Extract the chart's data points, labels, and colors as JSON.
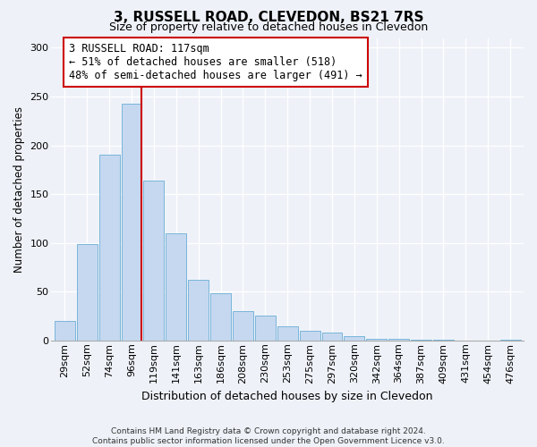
{
  "title": "3, RUSSELL ROAD, CLEVEDON, BS21 7RS",
  "subtitle": "Size of property relative to detached houses in Clevedon",
  "xlabel": "Distribution of detached houses by size in Clevedon",
  "ylabel": "Number of detached properties",
  "bin_labels": [
    "29sqm",
    "52sqm",
    "74sqm",
    "96sqm",
    "119sqm",
    "141sqm",
    "163sqm",
    "186sqm",
    "208sqm",
    "230sqm",
    "253sqm",
    "275sqm",
    "297sqm",
    "320sqm",
    "342sqm",
    "364sqm",
    "387sqm",
    "409sqm",
    "431sqm",
    "454sqm",
    "476sqm"
  ],
  "bar_values": [
    20,
    99,
    190,
    243,
    164,
    110,
    62,
    48,
    30,
    25,
    14,
    10,
    8,
    4,
    2,
    2,
    1,
    1,
    0,
    0,
    1
  ],
  "bar_color": "#c5d8f0",
  "bar_edge_color": "#6aaed6",
  "marker_bin_index": 3,
  "marker_line_color": "#cc0000",
  "annotation_title": "3 RUSSELL ROAD: 117sqm",
  "annotation_line1": "← 51% of detached houses are smaller (518)",
  "annotation_line2": "48% of semi-detached houses are larger (491) →",
  "annotation_box_facecolor": "#ffffff",
  "annotation_box_edgecolor": "#cc0000",
  "ylim": [
    0,
    310
  ],
  "yticks": [
    0,
    50,
    100,
    150,
    200,
    250,
    300
  ],
  "footer1": "Contains HM Land Registry data © Crown copyright and database right 2024.",
  "footer2": "Contains public sector information licensed under the Open Government Licence v3.0.",
  "background_color": "#eef2f8",
  "plot_bg_color": "#eef2f8",
  "grid_color": "#ffffff",
  "title_fontsize": 11,
  "subtitle_fontsize": 9,
  "ylabel_fontsize": 8.5,
  "xlabel_fontsize": 9,
  "tick_fontsize": 8,
  "footer_fontsize": 6.5
}
